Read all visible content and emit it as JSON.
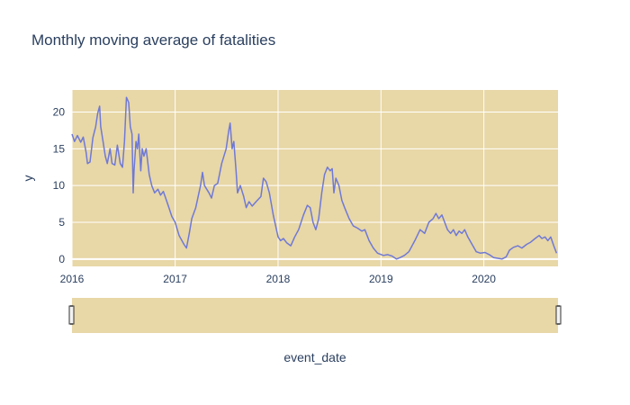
{
  "chart_data": {
    "type": "line",
    "title": "Monthly moving average of fatalities",
    "xlabel": "event_date",
    "ylabel": "y",
    "xlim": [
      "2016-01-01",
      "2020-09-20"
    ],
    "ylim": [
      -1,
      23
    ],
    "x_ticks": [
      "2016",
      "2017",
      "2018",
      "2019",
      "2020"
    ],
    "y_ticks": [
      "0",
      "5",
      "10",
      "15",
      "20"
    ],
    "grid": true,
    "range_slider": true,
    "colors": {
      "plot_bg": "#e8d7a7",
      "line": "#6f79d6",
      "grid": "#ffffff",
      "text": "#2a3f5f"
    },
    "series": [
      {
        "values": [
          [
            "2016-01-01",
            17.0
          ],
          [
            "2016-01-10",
            16.0
          ],
          [
            "2016-01-20",
            16.8
          ],
          [
            "2016-02-01",
            15.9
          ],
          [
            "2016-02-10",
            16.6
          ],
          [
            "2016-02-20",
            14.5
          ],
          [
            "2016-02-25",
            13.0
          ],
          [
            "2016-03-05",
            13.2
          ],
          [
            "2016-03-15",
            16.5
          ],
          [
            "2016-03-25",
            18.0
          ],
          [
            "2016-04-01",
            19.8
          ],
          [
            "2016-04-08",
            20.8
          ],
          [
            "2016-04-12",
            18.0
          ],
          [
            "2016-04-20",
            16.0
          ],
          [
            "2016-04-28",
            14.0
          ],
          [
            "2016-05-05",
            13.0
          ],
          [
            "2016-05-15",
            15.0
          ],
          [
            "2016-05-22",
            13.0
          ],
          [
            "2016-06-01",
            12.8
          ],
          [
            "2016-06-10",
            15.5
          ],
          [
            "2016-06-20",
            13.0
          ],
          [
            "2016-06-28",
            12.5
          ],
          [
            "2016-07-05",
            16.0
          ],
          [
            "2016-07-12",
            22.0
          ],
          [
            "2016-07-20",
            21.3
          ],
          [
            "2016-07-26",
            18.0
          ],
          [
            "2016-08-01",
            17.0
          ],
          [
            "2016-08-05",
            9.0
          ],
          [
            "2016-08-08",
            12.0
          ],
          [
            "2016-08-15",
            16.0
          ],
          [
            "2016-08-20",
            15.0
          ],
          [
            "2016-08-25",
            17.0
          ],
          [
            "2016-09-01",
            12.0
          ],
          [
            "2016-09-06",
            15.0
          ],
          [
            "2016-09-12",
            14.0
          ],
          [
            "2016-09-20",
            15.0
          ],
          [
            "2016-10-01",
            11.5
          ],
          [
            "2016-10-10",
            10.0
          ],
          [
            "2016-10-20",
            9.0
          ],
          [
            "2016-11-01",
            9.5
          ],
          [
            "2016-11-10",
            8.7
          ],
          [
            "2016-11-20",
            9.2
          ],
          [
            "2016-12-01",
            8.0
          ],
          [
            "2016-12-10",
            7.0
          ],
          [
            "2016-12-20",
            5.8
          ],
          [
            "2017-01-01",
            5.0
          ],
          [
            "2017-01-15",
            3.2
          ],
          [
            "2017-02-01",
            2.0
          ],
          [
            "2017-02-10",
            1.5
          ],
          [
            "2017-02-20",
            3.5
          ],
          [
            "2017-03-01",
            5.5
          ],
          [
            "2017-03-15",
            7.0
          ],
          [
            "2017-04-01",
            10.0
          ],
          [
            "2017-04-08",
            11.8
          ],
          [
            "2017-04-15",
            10.0
          ],
          [
            "2017-05-01",
            9.0
          ],
          [
            "2017-05-10",
            8.3
          ],
          [
            "2017-05-20",
            10.0
          ],
          [
            "2017-06-01",
            10.3
          ],
          [
            "2017-06-15",
            13.0
          ],
          [
            "2017-07-01",
            15.0
          ],
          [
            "2017-07-10",
            17.5
          ],
          [
            "2017-07-15",
            18.5
          ],
          [
            "2017-07-22",
            15.0
          ],
          [
            "2017-07-28",
            16.0
          ],
          [
            "2017-08-05",
            12.0
          ],
          [
            "2017-08-10",
            9.0
          ],
          [
            "2017-08-20",
            10.0
          ],
          [
            "2017-09-01",
            8.5
          ],
          [
            "2017-09-10",
            7.0
          ],
          [
            "2017-09-20",
            7.8
          ],
          [
            "2017-10-01",
            7.2
          ],
          [
            "2017-10-15",
            7.8
          ],
          [
            "2017-11-01",
            8.5
          ],
          [
            "2017-11-10",
            11.0
          ],
          [
            "2017-11-20",
            10.5
          ],
          [
            "2017-12-01",
            9.0
          ],
          [
            "2017-12-15",
            6.0
          ],
          [
            "2018-01-01",
            3.0
          ],
          [
            "2018-01-10",
            2.5
          ],
          [
            "2018-01-20",
            2.8
          ],
          [
            "2018-02-01",
            2.2
          ],
          [
            "2018-02-15",
            1.8
          ],
          [
            "2018-03-01",
            3.0
          ],
          [
            "2018-03-15",
            4.0
          ],
          [
            "2018-04-01",
            6.0
          ],
          [
            "2018-04-15",
            7.3
          ],
          [
            "2018-04-25",
            7.0
          ],
          [
            "2018-05-05",
            5.0
          ],
          [
            "2018-05-15",
            4.0
          ],
          [
            "2018-05-25",
            5.5
          ],
          [
            "2018-06-05",
            9.0
          ],
          [
            "2018-06-15",
            11.5
          ],
          [
            "2018-06-25",
            12.5
          ],
          [
            "2018-07-05",
            12.0
          ],
          [
            "2018-07-12",
            12.3
          ],
          [
            "2018-07-18",
            9.0
          ],
          [
            "2018-07-25",
            11.0
          ],
          [
            "2018-08-05",
            10.0
          ],
          [
            "2018-08-15",
            8.0
          ],
          [
            "2018-08-25",
            7.0
          ],
          [
            "2018-09-10",
            5.5
          ],
          [
            "2018-09-25",
            4.5
          ],
          [
            "2018-10-10",
            4.2
          ],
          [
            "2018-10-25",
            3.8
          ],
          [
            "2018-11-05",
            4.0
          ],
          [
            "2018-11-20",
            2.5
          ],
          [
            "2018-12-05",
            1.5
          ],
          [
            "2018-12-20",
            0.8
          ],
          [
            "2019-01-10",
            0.5
          ],
          [
            "2019-01-25",
            0.6
          ],
          [
            "2019-02-10",
            0.4
          ],
          [
            "2019-02-25",
            0.0
          ],
          [
            "2019-03-10",
            0.2
          ],
          [
            "2019-03-25",
            0.5
          ],
          [
            "2019-04-10",
            1.0
          ],
          [
            "2019-05-01",
            2.5
          ],
          [
            "2019-05-20",
            4.0
          ],
          [
            "2019-06-05",
            3.5
          ],
          [
            "2019-06-20",
            5.0
          ],
          [
            "2019-07-05",
            5.5
          ],
          [
            "2019-07-15",
            6.2
          ],
          [
            "2019-07-25",
            5.5
          ],
          [
            "2019-08-05",
            6.0
          ],
          [
            "2019-08-15",
            5.0
          ],
          [
            "2019-08-25",
            4.0
          ],
          [
            "2019-09-05",
            3.5
          ],
          [
            "2019-09-15",
            4.0
          ],
          [
            "2019-09-25",
            3.2
          ],
          [
            "2019-10-05",
            3.8
          ],
          [
            "2019-10-15",
            3.5
          ],
          [
            "2019-10-25",
            4.0
          ],
          [
            "2019-11-05",
            3.0
          ],
          [
            "2019-11-20",
            2.0
          ],
          [
            "2019-12-05",
            1.0
          ],
          [
            "2019-12-20",
            0.8
          ],
          [
            "2020-01-05",
            0.9
          ],
          [
            "2020-01-20",
            0.6
          ],
          [
            "2020-02-05",
            0.2
          ],
          [
            "2020-02-20",
            0.1
          ],
          [
            "2020-03-05",
            0.0
          ],
          [
            "2020-03-20",
            0.3
          ],
          [
            "2020-04-01",
            1.2
          ],
          [
            "2020-04-15",
            1.6
          ],
          [
            "2020-05-01",
            1.8
          ],
          [
            "2020-05-15",
            1.5
          ],
          [
            "2020-06-01",
            2.0
          ],
          [
            "2020-06-15",
            2.3
          ],
          [
            "2020-07-01",
            2.8
          ],
          [
            "2020-07-15",
            3.2
          ],
          [
            "2020-07-25",
            2.8
          ],
          [
            "2020-08-05",
            3.0
          ],
          [
            "2020-08-15",
            2.5
          ],
          [
            "2020-08-25",
            3.0
          ],
          [
            "2020-09-05",
            1.8
          ],
          [
            "2020-09-15",
            0.8
          ]
        ]
      }
    ]
  }
}
